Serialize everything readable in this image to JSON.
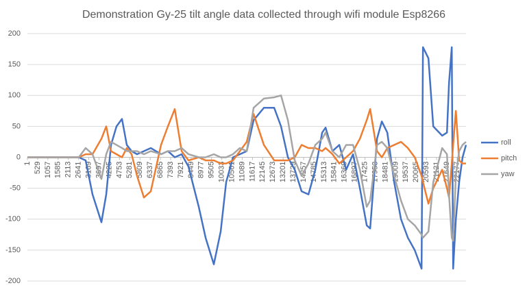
{
  "chart_data": {
    "type": "line",
    "title": "Demonstration Gy-25 tilt angle data collected through wifi module Esp8266",
    "x": [
      1,
      2123,
      2654,
      3007,
      3361,
      3821,
      4069,
      4316,
      4599,
      4882,
      5130,
      5377,
      5660,
      6014,
      6368,
      6898,
      7252,
      7606,
      7960,
      8314,
      8844,
      9198,
      9622,
      9976,
      10260,
      10613,
      10967,
      11321,
      11675,
      12206,
      12738,
      13091,
      13445,
      13799,
      14152,
      14506,
      14860,
      15214,
      15391,
      15744,
      16098,
      16452,
      16807,
      17161,
      17514,
      17691,
      18045,
      18293,
      18576,
      18930,
      19283,
      19637,
      19991,
      20345,
      20416,
      20699,
      20948,
      21407,
      21655,
      21761,
      21903,
      21974,
      22115,
      22284,
      22461,
      22638
    ],
    "series": [
      {
        "name": "roll",
        "color": "#4472c4",
        "values": [
          0,
          0,
          0,
          -5,
          -60,
          -105,
          -60,
          20,
          50,
          62,
          20,
          10,
          5,
          10,
          15,
          5,
          10,
          0,
          5,
          -15,
          -80,
          -130,
          -173,
          -120,
          -40,
          0,
          5,
          10,
          60,
          80,
          80,
          50,
          0,
          -20,
          -55,
          -60,
          -20,
          40,
          48,
          10,
          20,
          -20,
          5,
          -50,
          -110,
          -115,
          30,
          58,
          40,
          -40,
          -100,
          -130,
          -150,
          -180,
          178,
          160,
          50,
          35,
          40,
          120,
          178,
          -180,
          -100,
          -40,
          0,
          20
        ]
      },
      {
        "name": "pitch",
        "color": "#ed7d31",
        "values": [
          0,
          0,
          0,
          5,
          5,
          30,
          50,
          10,
          5,
          0,
          15,
          5,
          -30,
          -65,
          -55,
          20,
          50,
          78,
          10,
          -5,
          0,
          -5,
          -5,
          -10,
          -10,
          -5,
          10,
          25,
          70,
          20,
          -5,
          -5,
          -5,
          0,
          20,
          15,
          15,
          10,
          15,
          5,
          -10,
          0,
          10,
          30,
          60,
          78,
          10,
          0,
          15,
          20,
          25,
          15,
          0,
          -30,
          -40,
          -75,
          -50,
          -20,
          -50,
          -65,
          -10,
          20,
          75,
          -5,
          -10,
          -10
        ]
      },
      {
        "name": "yaw",
        "color": "#a5a5a5",
        "values": [
          0,
          0,
          0,
          15,
          5,
          -35,
          5,
          25,
          20,
          15,
          10,
          10,
          10,
          5,
          10,
          5,
          10,
          10,
          15,
          5,
          0,
          0,
          5,
          0,
          0,
          5,
          15,
          10,
          80,
          95,
          97,
          100,
          60,
          -5,
          -30,
          -10,
          20,
          30,
          40,
          10,
          0,
          20,
          20,
          -20,
          -80,
          -70,
          20,
          25,
          15,
          -30,
          -70,
          -100,
          -110,
          -125,
          -130,
          -120,
          -40,
          15,
          5,
          -60,
          -130,
          -135,
          -30,
          10,
          20,
          25
        ]
      }
    ],
    "xlim": [
      1,
      22638
    ],
    "xticks": [
      1,
      529,
      1057,
      1585,
      2113,
      2641,
      3169,
      3697,
      4225,
      4753,
      5281,
      5809,
      6337,
      6865,
      7393,
      7921,
      8449,
      8977,
      9505,
      10033,
      10561,
      11089,
      11617,
      12145,
      12673,
      13201,
      13729,
      14257,
      14785,
      15313,
      15841,
      16369,
      16897,
      17425,
      17953,
      18481,
      19009,
      19537,
      20065,
      20593,
      21121,
      21649,
      22177
    ],
    "ylim": [
      -200,
      200
    ],
    "yticks": [
      -200,
      -150,
      -100,
      -50,
      0,
      50,
      100,
      150,
      200
    ],
    "grid": true,
    "legend": "right"
  }
}
